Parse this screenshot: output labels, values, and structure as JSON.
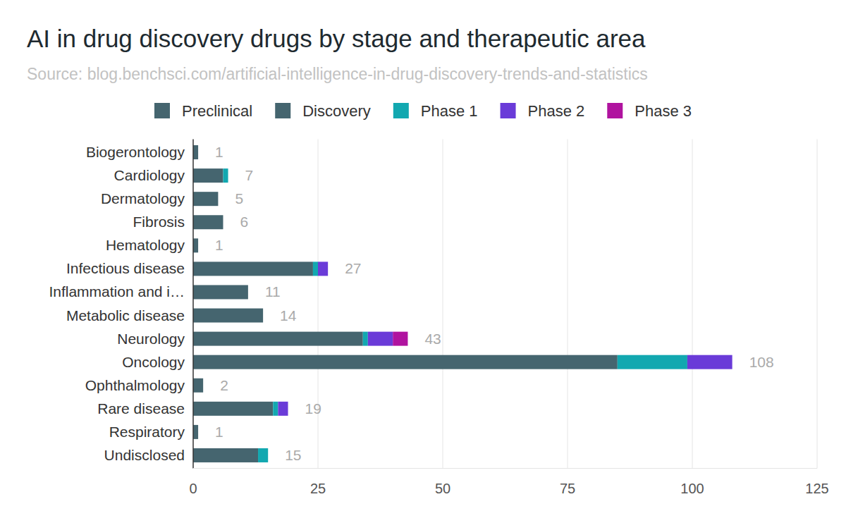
{
  "chart_data": {
    "type": "bar",
    "orientation": "horizontal",
    "stacked": true,
    "title": "AI in drug discovery drugs by stage and therapeutic area",
    "subtitle": "Source: blog.benchsci.com/artificial-intelligence-in-drug-discovery-trends-and-statistics",
    "categories": [
      "Biogerontology",
      "Cardiology",
      "Dermatology",
      "Fibrosis",
      "Hematology",
      "Infectious disease",
      "Inflammation and i…",
      "Metabolic disease",
      "Neurology",
      "Oncology",
      "Ophthalmology",
      "Rare disease",
      "Respiratory",
      "Undisclosed"
    ],
    "series": [
      {
        "name": "Preclinical",
        "color": "#45656f",
        "values": [
          1,
          6,
          5,
          6,
          1,
          24,
          11,
          14,
          34,
          85,
          2,
          16,
          1,
          13
        ]
      },
      {
        "name": "Discovery",
        "color": "#45656f",
        "values": [
          0,
          0,
          0,
          0,
          0,
          0,
          0,
          0,
          0,
          0,
          0,
          0,
          0,
          0
        ]
      },
      {
        "name": "Phase 1",
        "color": "#12a8b0",
        "values": [
          0,
          1,
          0,
          0,
          0,
          1,
          0,
          0,
          1,
          14,
          0,
          1,
          0,
          2
        ]
      },
      {
        "name": "Phase 2",
        "color": "#6a3bd8",
        "values": [
          0,
          0,
          0,
          0,
          0,
          2,
          0,
          0,
          5,
          9,
          0,
          2,
          0,
          0
        ]
      },
      {
        "name": "Phase 3",
        "color": "#b0139f",
        "values": [
          0,
          0,
          0,
          0,
          0,
          0,
          0,
          0,
          3,
          0,
          0,
          0,
          0,
          0
        ]
      }
    ],
    "totals": [
      1,
      7,
      5,
      6,
      1,
      27,
      11,
      14,
      43,
      108,
      2,
      19,
      1,
      15
    ],
    "xlim": [
      0,
      125
    ],
    "xticks": [
      0,
      25,
      50,
      75,
      100,
      125
    ],
    "grid": true,
    "legend": "top"
  }
}
